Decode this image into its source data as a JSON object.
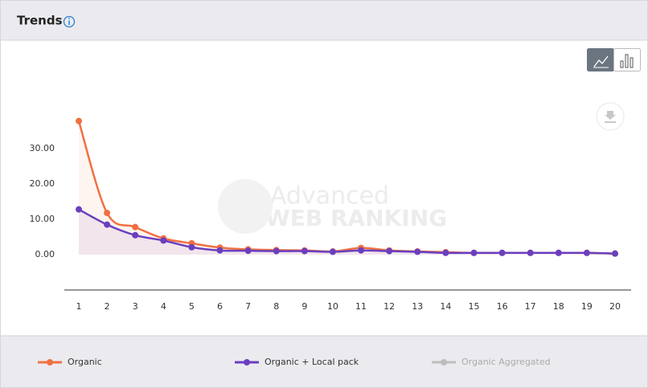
{
  "chart_data": {
    "type": "line",
    "title": "Trends",
    "watermark": {
      "line1": "Advanced",
      "line2": "WEB RANKING"
    },
    "x": [
      1,
      2,
      3,
      4,
      5,
      6,
      7,
      8,
      9,
      10,
      11,
      12,
      13,
      14,
      15,
      16,
      17,
      18,
      19,
      20
    ],
    "xlim": [
      1,
      20
    ],
    "xticks": [
      1,
      2,
      3,
      4,
      5,
      6,
      7,
      8,
      9,
      10,
      11,
      12,
      13,
      14,
      15,
      16,
      17,
      18,
      19,
      20
    ],
    "ylim": [
      -10,
      40
    ],
    "yticks": [
      {
        "value": 0,
        "label": "0.00"
      },
      {
        "value": 10,
        "label": "10.00"
      },
      {
        "value": 20,
        "label": "20.00"
      },
      {
        "value": 30,
        "label": "30.00"
      }
    ],
    "grid": false,
    "series": [
      {
        "name": "Organic",
        "color": "#f07041",
        "values": [
          37.8,
          11.8,
          7.8,
          4.6,
          3.2,
          2.0,
          1.5,
          1.3,
          1.2,
          0.9,
          1.9,
          1.2,
          0.9,
          0.7,
          0.5,
          0.5,
          0.5,
          0.5,
          0.5,
          0.3
        ]
      },
      {
        "name": "Organic + Local pack",
        "color": "#6a3fbf",
        "values": [
          12.8,
          8.5,
          5.5,
          4.0,
          2.1,
          1.2,
          1.1,
          1.0,
          1.0,
          0.8,
          1.2,
          1.0,
          0.8,
          0.5,
          0.5,
          0.5,
          0.5,
          0.5,
          0.5,
          0.3
        ]
      }
    ],
    "inactive_series": [
      {
        "name": "Organic Aggregated",
        "color": "#bdbdbd"
      }
    ]
  }
}
